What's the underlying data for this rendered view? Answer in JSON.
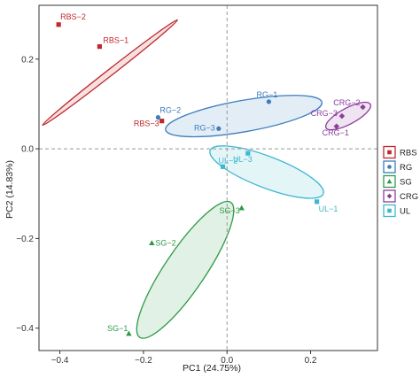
{
  "chart_data": {
    "type": "scatter",
    "xlabel": "PC1 (24.75%)",
    "ylabel": "PC2 (14.83%)",
    "xlim": [
      -0.45,
      0.36
    ],
    "ylim": [
      -0.45,
      0.32
    ],
    "xticks": [
      -0.4,
      -0.2,
      0.0,
      0.2
    ],
    "xtick_labels": [
      "−0.4",
      "−0.2",
      "0.0",
      "0.2"
    ],
    "yticks": [
      -0.4,
      -0.2,
      0.0,
      0.2
    ],
    "ytick_labels": [
      "−0.4",
      "−0.2",
      "0.0",
      "0.2"
    ],
    "reference_lines": {
      "x": 0,
      "y": 0,
      "style": "dashed"
    },
    "grid": false,
    "legend_position": "right",
    "series": [
      {
        "name": "RBS",
        "color": "#c0282d",
        "marker": "square",
        "points": [
          {
            "label": "RBS−1",
            "x": -0.305,
            "y": 0.228
          },
          {
            "label": "RBS−2",
            "x": -0.403,
            "y": 0.277
          },
          {
            "label": "RBS−3",
            "x": -0.156,
            "y": 0.062
          }
        ]
      },
      {
        "name": "RG",
        "color": "#3b7dbd",
        "marker": "circle",
        "points": [
          {
            "label": "RG−1",
            "x": 0.1,
            "y": 0.105
          },
          {
            "label": "RG−2",
            "x": -0.165,
            "y": 0.07
          },
          {
            "label": "RG−3",
            "x": -0.02,
            "y": 0.045
          }
        ]
      },
      {
        "name": "SG",
        "color": "#2e9a47",
        "marker": "triangle",
        "points": [
          {
            "label": "SG−1",
            "x": -0.235,
            "y": -0.412
          },
          {
            "label": "SG−2",
            "x": -0.18,
            "y": -0.21
          },
          {
            "label": "SG−3",
            "x": 0.035,
            "y": -0.132
          }
        ]
      },
      {
        "name": "CRG",
        "color": "#8e3d9b",
        "marker": "diamond",
        "points": [
          {
            "label": "CRG−1",
            "x": 0.262,
            "y": 0.05
          },
          {
            "label": "CRG−2",
            "x": 0.325,
            "y": 0.093
          },
          {
            "label": "CRG−3",
            "x": 0.275,
            "y": 0.073
          }
        ]
      },
      {
        "name": "UL",
        "color": "#3fb8cf",
        "marker": "square",
        "points": [
          {
            "label": "UL−1",
            "x": 0.215,
            "y": -0.118
          },
          {
            "label": "UL−2",
            "x": -0.01,
            "y": -0.04
          },
          {
            "label": "UL−3",
            "x": 0.05,
            "y": -0.01
          }
        ]
      }
    ],
    "ellipses": [
      {
        "group": "RBS",
        "cx": -0.28,
        "cy": 0.17,
        "rx": 0.205,
        "ry": 0.007,
        "angle_deg": 38
      },
      {
        "group": "RG",
        "cx": 0.04,
        "cy": 0.073,
        "rx": 0.19,
        "ry": 0.035,
        "angle_deg": 10
      },
      {
        "group": "CRG",
        "cx": 0.29,
        "cy": 0.073,
        "rx": 0.06,
        "ry": 0.018,
        "angle_deg": 28
      },
      {
        "group": "UL",
        "cx": 0.095,
        "cy": -0.052,
        "rx": 0.145,
        "ry": 0.035,
        "angle_deg": -21
      },
      {
        "group": "SG",
        "cx": -0.1,
        "cy": -0.27,
        "rx": 0.195,
        "ry": 0.045,
        "angle_deg": 56
      }
    ]
  }
}
